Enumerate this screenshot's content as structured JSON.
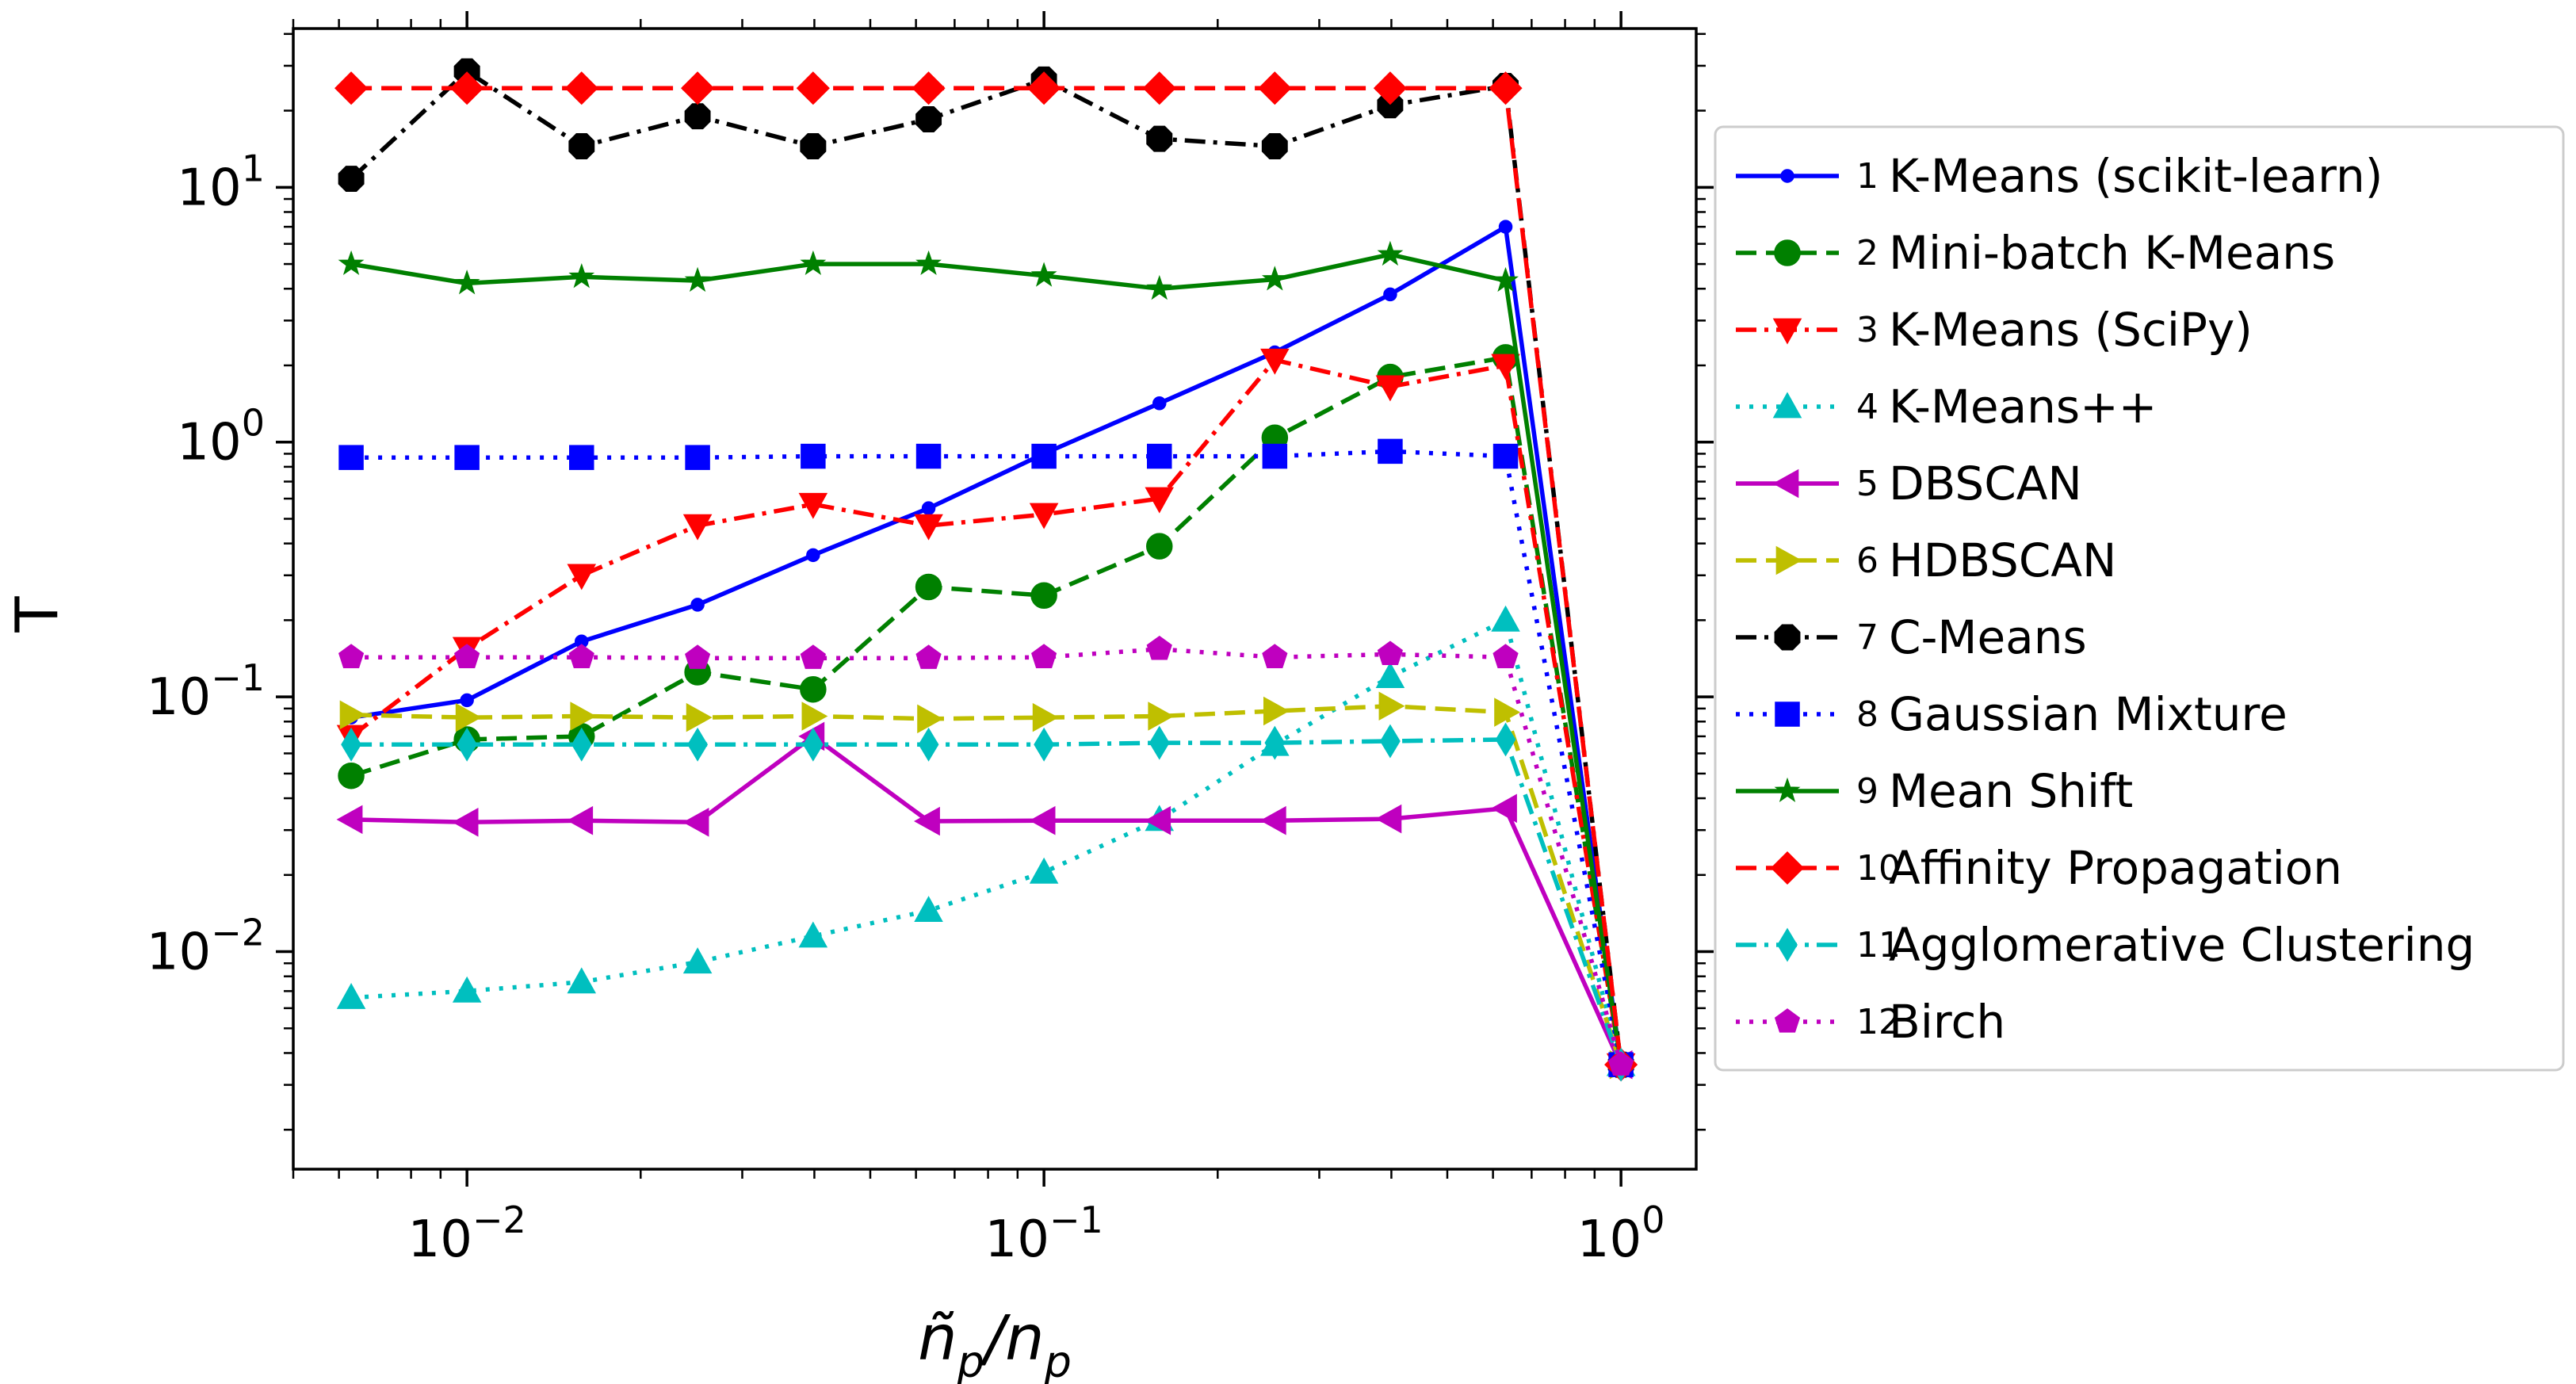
{
  "chart_data": {
    "type": "line",
    "xscale": "log",
    "yscale": "log",
    "xlim": [
      0.005,
      1.35
    ],
    "ylim": [
      0.0014,
      42
    ],
    "xlabel": "ñp/np",
    "ylabel": "T",
    "grid": false,
    "legend_position": "outside-right",
    "x_ticks": [
      {
        "value": 0.01,
        "base": "10",
        "exp": "−2"
      },
      {
        "value": 0.1,
        "base": "10",
        "exp": "−1"
      },
      {
        "value": 1,
        "base": "10",
        "exp": "0"
      }
    ],
    "y_ticks": [
      {
        "value": 0.01,
        "base": "10",
        "exp": "−2"
      },
      {
        "value": 0.1,
        "base": "10",
        "exp": "−1"
      },
      {
        "value": 1,
        "base": "10",
        "exp": "0"
      },
      {
        "value": 10,
        "base": "10",
        "exp": "1"
      }
    ],
    "x": [
      0.0063,
      0.01,
      0.0158,
      0.0251,
      0.0398,
      0.0631,
      0.1,
      0.1585,
      0.2512,
      0.3981,
      0.631,
      1.0
    ],
    "series": [
      {
        "index": "1",
        "name": "K-Means (scikit-learn)",
        "color": "#0000ff",
        "dash": "solid",
        "marker": "point",
        "values": [
          0.083,
          0.097,
          0.165,
          0.23,
          0.36,
          0.55,
          0.9,
          1.42,
          2.25,
          3.8,
          7.0,
          0.0036
        ]
      },
      {
        "index": "2",
        "name": "Mini-batch K-Means",
        "color": "#008000",
        "dash": "dashed",
        "marker": "circle",
        "values": [
          0.049,
          0.068,
          0.07,
          0.125,
          0.107,
          0.27,
          0.25,
          0.39,
          1.04,
          1.8,
          2.15,
          0.0036
        ]
      },
      {
        "index": "3",
        "name": "K-Means (SciPy)",
        "color": "#ff0000",
        "dash": "dashdot",
        "marker": "triangle-down",
        "values": [
          0.07,
          0.155,
          0.3,
          0.47,
          0.57,
          0.47,
          0.52,
          0.6,
          2.1,
          1.65,
          2.0,
          0.0036
        ]
      },
      {
        "index": "4",
        "name": "K-Means++",
        "color": "#00bfbf",
        "dash": "dotted",
        "marker": "triangle-up",
        "values": [
          0.0066,
          0.007,
          0.0076,
          0.0091,
          0.0115,
          0.0145,
          0.0205,
          0.033,
          0.065,
          0.12,
          0.2,
          0.0036
        ]
      },
      {
        "index": "5",
        "name": "DBSCAN",
        "color": "#bf00bf",
        "dash": "solid",
        "marker": "triangle-left",
        "values": [
          0.033,
          0.0322,
          0.0327,
          0.0322,
          0.07,
          0.0325,
          0.0327,
          0.0327,
          0.0327,
          0.0332,
          0.0365,
          0.0036
        ]
      },
      {
        "index": "6",
        "name": "HDBSCAN",
        "color": "#bfbf00",
        "dash": "dashed",
        "marker": "triangle-right",
        "values": [
          0.085,
          0.083,
          0.084,
          0.083,
          0.084,
          0.082,
          0.083,
          0.084,
          0.088,
          0.092,
          0.087,
          0.0036
        ]
      },
      {
        "index": "7",
        "name": "C-Means",
        "color": "#000000",
        "dash": "dashdot",
        "marker": "octagon",
        "values": [
          10.8,
          28.5,
          14.5,
          19.0,
          14.5,
          18.5,
          26.5,
          15.5,
          14.5,
          21.0,
          25.0,
          0.0036
        ]
      },
      {
        "index": "8",
        "name": "Gaussian Mixture",
        "color": "#0000ff",
        "dash": "dotted",
        "marker": "square",
        "values": [
          0.87,
          0.87,
          0.87,
          0.87,
          0.88,
          0.88,
          0.88,
          0.88,
          0.88,
          0.92,
          0.88,
          0.0036
        ]
      },
      {
        "index": "9",
        "name": "Mean Shift",
        "color": "#008000",
        "dash": "solid",
        "marker": "star",
        "values": [
          5.0,
          4.2,
          4.45,
          4.3,
          5.0,
          5.0,
          4.5,
          4.0,
          4.35,
          5.45,
          4.3,
          0.0036
        ]
      },
      {
        "index": "10",
        "name": "Affinity Propagation",
        "color": "#ff0000",
        "dash": "dashed",
        "marker": "diamond",
        "values": [
          24.5,
          24.5,
          24.5,
          24.5,
          24.5,
          24.5,
          24.5,
          24.5,
          24.5,
          24.5,
          24.5,
          0.0036
        ]
      },
      {
        "index": "11",
        "name": "Agglomerative Clustering",
        "color": "#00bfbf",
        "dash": "dashdot",
        "marker": "thin-diamond",
        "values": [
          0.065,
          0.065,
          0.065,
          0.065,
          0.065,
          0.065,
          0.065,
          0.066,
          0.066,
          0.067,
          0.068,
          0.0036
        ]
      },
      {
        "index": "12",
        "name": "Birch",
        "color": "#bf00bf",
        "dash": "dotted",
        "marker": "pentagon",
        "values": [
          0.143,
          0.143,
          0.143,
          0.142,
          0.142,
          0.142,
          0.143,
          0.154,
          0.143,
          0.147,
          0.143,
          0.0036
        ]
      }
    ]
  }
}
